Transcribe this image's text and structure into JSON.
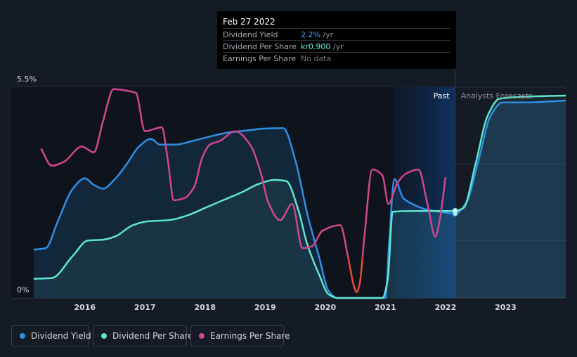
{
  "tooltip": {
    "date": "Feb 27 2022",
    "rows": [
      {
        "label": "Dividend Yield",
        "value": "2.2%",
        "unit": " /yr"
      },
      {
        "label": "Dividend Per Share",
        "value": "kr0.900",
        "unit": " /yr"
      },
      {
        "label": "Earnings Per Share",
        "value": "No data"
      }
    ]
  },
  "legend": {
    "items": [
      {
        "label": "Dividend Yield",
        "color": "#2e8fe6"
      },
      {
        "label": "Dividend Per Share",
        "color": "#5fe6cf"
      },
      {
        "label": "Earnings Per Share",
        "color": "#d0468f"
      }
    ]
  },
  "chart_data": {
    "type": "line",
    "title": "",
    "xlabel": "",
    "ylabel": "",
    "y_tick_labels": [
      "5.5%",
      "0%"
    ],
    "y_range": [
      0,
      5.5
    ],
    "x_range": [
      2015.15,
      2024.0
    ],
    "x_ticks": [
      2016,
      2017,
      2018,
      2019,
      2020,
      2021,
      2022,
      2023
    ],
    "region_labels": {
      "past": "Past",
      "forecast": "Analysts Forecasts"
    },
    "past_end": 2022.16,
    "highlight_start": 2021.14,
    "series": [
      {
        "name": "Dividend Yield",
        "unit": "%",
        "color": "#2e8fe6",
        "points": [
          [
            2015.15,
            1.26
          ],
          [
            2015.35,
            1.3
          ],
          [
            2015.55,
            2.0
          ],
          [
            2015.8,
            2.85
          ],
          [
            2016.0,
            3.12
          ],
          [
            2016.15,
            2.95
          ],
          [
            2016.3,
            2.85
          ],
          [
            2016.5,
            3.1
          ],
          [
            2016.7,
            3.5
          ],
          [
            2016.9,
            3.95
          ],
          [
            2017.1,
            4.15
          ],
          [
            2017.25,
            4.0
          ],
          [
            2017.5,
            4.0
          ],
          [
            2017.8,
            4.1
          ],
          [
            2018.1,
            4.22
          ],
          [
            2018.4,
            4.32
          ],
          [
            2018.7,
            4.37
          ],
          [
            2019.0,
            4.42
          ],
          [
            2019.3,
            4.43
          ],
          [
            2019.5,
            3.6
          ],
          [
            2019.7,
            2.2
          ],
          [
            2019.9,
            1.05
          ],
          [
            2020.05,
            0.2
          ],
          [
            2020.2,
            0.0
          ],
          [
            2021.0,
            0.0
          ],
          [
            2021.06,
            1.4
          ],
          [
            2021.15,
            3.1
          ],
          [
            2021.3,
            2.6
          ],
          [
            2021.45,
            2.45
          ],
          [
            2021.7,
            2.3
          ],
          [
            2022.0,
            2.23
          ],
          [
            2022.16,
            2.2
          ],
          [
            2022.35,
            2.5
          ],
          [
            2022.55,
            3.6
          ],
          [
            2022.75,
            4.75
          ],
          [
            2022.95,
            5.1
          ],
          [
            2023.3,
            5.1
          ],
          [
            2024.0,
            5.15
          ]
        ]
      },
      {
        "name": "Dividend Per Share",
        "unit": "kr",
        "color": "#5fe6cf",
        "points": [
          [
            2015.15,
            0.5
          ],
          [
            2015.45,
            0.52
          ],
          [
            2015.8,
            1.1
          ],
          [
            2016.05,
            1.5
          ],
          [
            2016.3,
            1.52
          ],
          [
            2016.5,
            1.6
          ],
          [
            2016.8,
            1.9
          ],
          [
            2017.05,
            2.0
          ],
          [
            2017.4,
            2.03
          ],
          [
            2017.7,
            2.15
          ],
          [
            2018.0,
            2.35
          ],
          [
            2018.3,
            2.55
          ],
          [
            2018.6,
            2.75
          ],
          [
            2018.9,
            2.98
          ],
          [
            2019.15,
            3.08
          ],
          [
            2019.35,
            3.05
          ],
          [
            2019.55,
            2.3
          ],
          [
            2019.7,
            1.4
          ],
          [
            2019.9,
            0.6
          ],
          [
            2020.05,
            0.1
          ],
          [
            2020.2,
            0.0
          ],
          [
            2020.95,
            0.0
          ],
          [
            2021.04,
            0.5
          ],
          [
            2021.12,
            2.25
          ],
          [
            2021.5,
            2.27
          ],
          [
            2022.16,
            2.27
          ],
          [
            2022.3,
            2.35
          ],
          [
            2022.5,
            3.5
          ],
          [
            2022.7,
            4.75
          ],
          [
            2022.9,
            5.2
          ],
          [
            2023.3,
            5.25
          ],
          [
            2024.0,
            5.28
          ]
        ]
      },
      {
        "name": "Earnings Per Share",
        "unit": "kr",
        "color": "#d0468f",
        "negative_color": "#e84a3a",
        "points": [
          [
            2015.27,
            3.9
          ],
          [
            2015.45,
            3.45
          ],
          [
            2015.65,
            3.55
          ],
          [
            2015.95,
            3.95
          ],
          [
            2016.15,
            3.8
          ],
          [
            2016.3,
            4.6
          ],
          [
            2016.48,
            5.45
          ],
          [
            2016.65,
            5.42
          ],
          [
            2016.85,
            5.35
          ],
          [
            2017.0,
            4.35
          ],
          [
            2017.28,
            4.45
          ],
          [
            2017.38,
            3.6
          ],
          [
            2017.48,
            2.55
          ],
          [
            2017.65,
            2.6
          ],
          [
            2017.82,
            2.9
          ],
          [
            2017.95,
            3.65
          ],
          [
            2018.08,
            4.0
          ],
          [
            2018.25,
            4.1
          ],
          [
            2018.5,
            4.35
          ],
          [
            2018.75,
            4.0
          ],
          [
            2018.92,
            3.3
          ],
          [
            2019.05,
            2.5
          ],
          [
            2019.25,
            2.03
          ],
          [
            2019.45,
            2.45
          ],
          [
            2019.62,
            1.3
          ],
          [
            2019.78,
            1.35
          ],
          [
            2019.95,
            1.75
          ],
          [
            2020.25,
            1.9
          ],
          [
            2020.38,
            1.05
          ],
          [
            2020.47,
            0.35
          ],
          [
            2020.52,
            0.15
          ],
          [
            2020.57,
            0.35
          ],
          [
            2020.65,
            1.6
          ],
          [
            2020.78,
            3.35
          ],
          [
            2020.95,
            3.2
          ],
          [
            2021.05,
            2.45
          ],
          [
            2021.2,
            3.0
          ],
          [
            2021.35,
            3.25
          ],
          [
            2021.55,
            3.35
          ],
          [
            2021.7,
            2.45
          ],
          [
            2021.83,
            1.6
          ],
          [
            2021.9,
            2.0
          ],
          [
            2022.0,
            3.15
          ]
        ]
      }
    ]
  }
}
